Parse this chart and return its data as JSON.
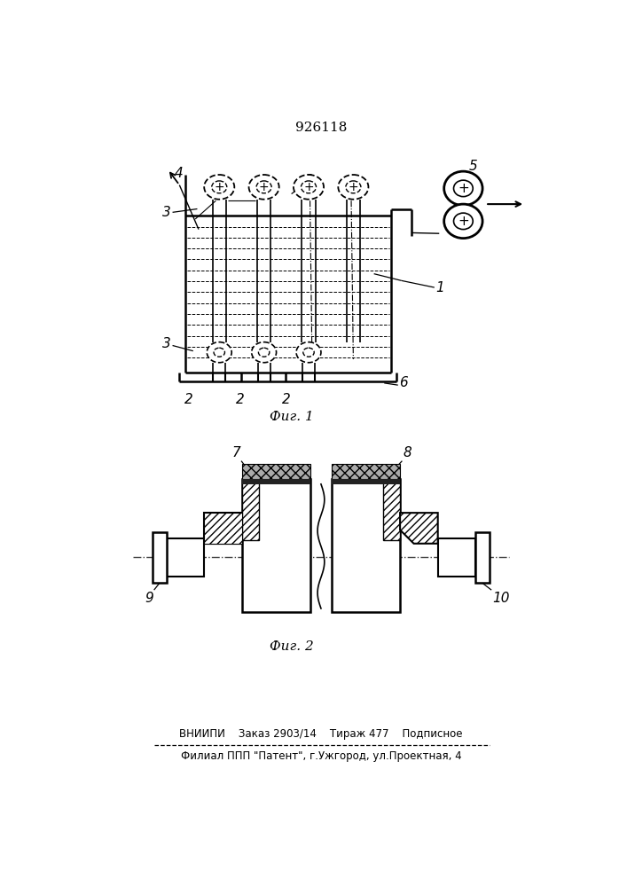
{
  "title": "926118",
  "fig1_caption": "Фиг. 1",
  "fig2_caption": "Фиг. 2",
  "footer_line1": "ВНИИПИ    Заказ 2903/14    Тираж 477    Подписное",
  "footer_line2": "Филиал ППП \"Патент\", г.Ужгород, ул.Проектная, 4",
  "bg_color": "#ffffff",
  "line_color": "#000000"
}
